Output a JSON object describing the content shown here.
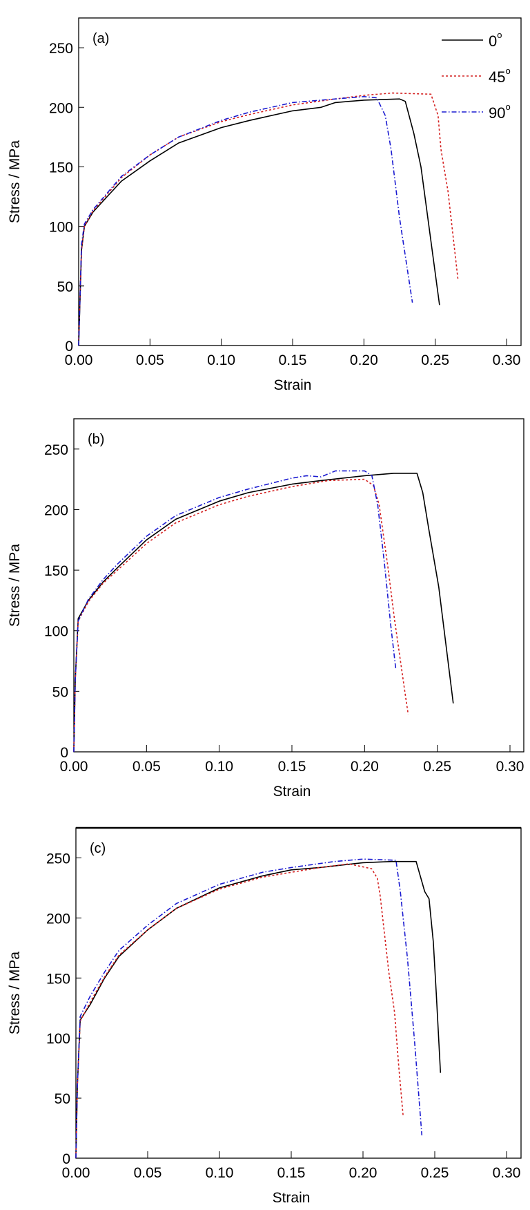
{
  "chart_data": [
    {
      "type": "line",
      "panel_label": "(a)",
      "xlabel": "Strain",
      "ylabel": "Stress / MPa",
      "xlim": [
        0,
        0.31
      ],
      "ylim": [
        0,
        275
      ],
      "xticks": [
        "0.00",
        "0.05",
        "0.10",
        "0.15",
        "0.20",
        "0.25",
        "0.30"
      ],
      "yticks": [
        "0",
        "50",
        "100",
        "150",
        "200",
        "250"
      ],
      "legend": {
        "placement": "top-right",
        "entries": [
          "0",
          "45",
          "90"
        ],
        "degree_mark": "o"
      },
      "series": [
        {
          "name": "0",
          "color": "#000000",
          "style": "solid",
          "x": [
            0,
            0.002,
            0.004,
            0.01,
            0.02,
            0.03,
            0.05,
            0.07,
            0.1,
            0.12,
            0.15,
            0.17,
            0.18,
            0.2,
            0.225,
            0.229,
            0.235,
            0.24,
            0.253
          ],
          "y": [
            0,
            80,
            100,
            112,
            125,
            138,
            155,
            170,
            183,
            189,
            197,
            200,
            204,
            206,
            207,
            205,
            178,
            150,
            34
          ]
        },
        {
          "name": "45",
          "color": "#d42020",
          "style": "dotted",
          "x": [
            0,
            0.002,
            0.004,
            0.01,
            0.02,
            0.03,
            0.05,
            0.07,
            0.1,
            0.12,
            0.15,
            0.18,
            0.2,
            0.22,
            0.247,
            0.252,
            0.254,
            0.259,
            0.266
          ],
          "y": [
            5,
            80,
            100,
            113,
            127,
            141,
            160,
            175,
            188,
            194,
            202,
            207,
            210,
            212,
            211,
            193,
            165,
            129,
            55
          ]
        },
        {
          "name": "90",
          "color": "#1a1ad0",
          "style": "dashdot",
          "x": [
            0,
            0.002,
            0.004,
            0.01,
            0.02,
            0.03,
            0.05,
            0.07,
            0.1,
            0.12,
            0.15,
            0.18,
            0.2,
            0.209,
            0.215,
            0.219,
            0.225,
            0.234
          ],
          "y": [
            0,
            85,
            102,
            114,
            128,
            142,
            160,
            175,
            189,
            196,
            204,
            207,
            209,
            208,
            193,
            165,
            107,
            36
          ]
        }
      ]
    },
    {
      "type": "line",
      "panel_label": "(b)",
      "xlabel": "Strain",
      "ylabel": "Stress / MPa",
      "xlim": [
        0,
        0.31
      ],
      "ylim": [
        0,
        275
      ],
      "xticks": [
        "0.00",
        "0.05",
        "0.10",
        "0.15",
        "0.20",
        "0.25",
        "0.30"
      ],
      "yticks": [
        "0",
        "50",
        "100",
        "150",
        "200",
        "250"
      ],
      "series": [
        {
          "name": "0",
          "color": "#000000",
          "style": "solid",
          "x": [
            0,
            0.001,
            0.003,
            0.01,
            0.02,
            0.03,
            0.05,
            0.07,
            0.1,
            0.12,
            0.15,
            0.17,
            0.2,
            0.22,
            0.236,
            0.24,
            0.244,
            0.251,
            0.261
          ],
          "y": [
            0,
            60,
            110,
            125,
            140,
            152,
            175,
            192,
            207,
            214,
            221,
            224,
            228,
            230,
            230,
            214,
            185,
            136,
            40
          ]
        },
        {
          "name": "45",
          "color": "#d42020",
          "style": "dotted",
          "x": [
            0,
            0.001,
            0.003,
            0.01,
            0.02,
            0.03,
            0.05,
            0.07,
            0.1,
            0.12,
            0.15,
            0.175,
            0.2,
            0.206,
            0.21,
            0.216,
            0.2205,
            0.2275,
            0.23
          ],
          "y": [
            0,
            60,
            108,
            124,
            139,
            150,
            172,
            189,
            204,
            211,
            219,
            224,
            225,
            220,
            204,
            153,
            110,
            51,
            31
          ]
        },
        {
          "name": "90",
          "color": "#1a1ad0",
          "style": "dashdot",
          "x": [
            0,
            0.001,
            0.003,
            0.01,
            0.02,
            0.03,
            0.05,
            0.07,
            0.1,
            0.12,
            0.15,
            0.16,
            0.17,
            0.18,
            0.2,
            0.205,
            0.209,
            0.2135,
            0.218,
            0.2215
          ],
          "y": [
            0,
            60,
            108,
            126,
            142,
            155,
            178,
            195,
            210,
            217,
            226,
            228,
            227,
            232,
            232,
            228,
            204,
            157,
            104,
            68
          ]
        }
      ]
    },
    {
      "type": "line",
      "panel_label": "(c)",
      "xlabel": "Strain",
      "ylabel": "Stress / MPa",
      "xlim": [
        0,
        0.31
      ],
      "ylim": [
        0,
        275
      ],
      "xticks": [
        "0.00",
        "0.05",
        "0.10",
        "0.15",
        "0.20",
        "0.25",
        "0.30"
      ],
      "yticks": [
        "0",
        "50",
        "100",
        "150",
        "200",
        "250"
      ],
      "series": [
        {
          "name": "0",
          "color": "#000000",
          "style": "solid",
          "x": [
            0,
            0.001,
            0.003,
            0.01,
            0.02,
            0.03,
            0.05,
            0.07,
            0.1,
            0.13,
            0.15,
            0.17,
            0.2,
            0.22,
            0.237,
            0.243,
            0.246,
            0.249,
            0.251,
            0.254
          ],
          "y": [
            0,
            60,
            115,
            128,
            150,
            168,
            190,
            208,
            225,
            235,
            240,
            242,
            246,
            247,
            247,
            222,
            216,
            180,
            138,
            71
          ]
        },
        {
          "name": "45",
          "color": "#d42020",
          "style": "dotted",
          "x": [
            0,
            0.001,
            0.003,
            0.01,
            0.02,
            0.03,
            0.05,
            0.07,
            0.1,
            0.13,
            0.15,
            0.17,
            0.19,
            0.206,
            0.21,
            0.212,
            0.218,
            0.222,
            0.225,
            0.228
          ],
          "y": [
            0,
            60,
            114,
            130,
            151,
            169,
            190,
            208,
            224,
            234,
            238,
            242,
            245,
            241,
            233,
            218,
            155,
            121,
            75,
            35
          ]
        },
        {
          "name": "90",
          "color": "#1a1ad0",
          "style": "dashdot",
          "x": [
            0,
            0.001,
            0.003,
            0.01,
            0.02,
            0.03,
            0.05,
            0.07,
            0.1,
            0.13,
            0.15,
            0.18,
            0.2,
            0.223,
            0.226,
            0.231,
            0.236,
            0.241
          ],
          "y": [
            0,
            60,
            118,
            135,
            155,
            173,
            194,
            212,
            228,
            238,
            242,
            247,
            249,
            248,
            222,
            166,
            96,
            19
          ]
        }
      ]
    }
  ]
}
